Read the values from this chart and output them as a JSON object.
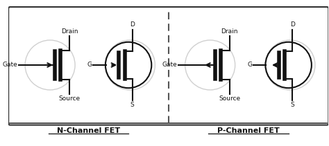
{
  "bg_color": "#f5f5f5",
  "border_color": "#333333",
  "line_color": "#111111",
  "symbol_color": "#111111",
  "divider_color": "#555555",
  "label_color": "#111111",
  "fig_width": 4.74,
  "fig_height": 2.11,
  "n_channel_label": "N-Channel FET",
  "p_channel_label": "P-Channel FET",
  "gate_label": "Gate",
  "drain_label": "Drain",
  "source_label": "Source",
  "d_label": "D",
  "g_label": "G",
  "s_label": "S"
}
